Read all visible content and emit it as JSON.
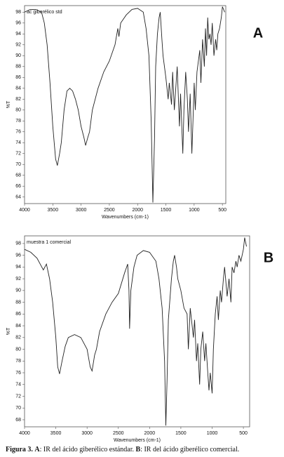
{
  "chart_data": [
    {
      "type": "line",
      "panel": "A",
      "annotation": "ac giberélico std",
      "xlabel": "Wavenumbers (cm-1)",
      "ylabel": "%T",
      "x": [
        4000,
        3900,
        3800,
        3700,
        3650,
        3600,
        3550,
        3500,
        3450,
        3420,
        3380,
        3350,
        3300,
        3250,
        3200,
        3150,
        3100,
        3050,
        3000,
        2950,
        2920,
        2880,
        2850,
        2800,
        2700,
        2600,
        2500,
        2400,
        2350,
        2330,
        2300,
        2200,
        2100,
        2000,
        1900,
        1850,
        1800,
        1760,
        1730,
        1700,
        1680,
        1650,
        1620,
        1600,
        1570,
        1550,
        1500,
        1460,
        1440,
        1400,
        1380,
        1350,
        1300,
        1260,
        1240,
        1200,
        1180,
        1150,
        1120,
        1100,
        1070,
        1040,
        1020,
        1000,
        980,
        950,
        900,
        880,
        850,
        820,
        800,
        780,
        760,
        740,
        720,
        700,
        680,
        650,
        620,
        600,
        580,
        550,
        520,
        500,
        460
      ],
      "series": [
        {
          "color": "#222222",
          "values": [
            98,
            98.5,
            98.5,
            98,
            96,
            92,
            85,
            77,
            71,
            69.8,
            72,
            74,
            80,
            83.5,
            84,
            83.5,
            82,
            80,
            77,
            75,
            73.5,
            75,
            76,
            80,
            84,
            87,
            89,
            92,
            95,
            93.5,
            96,
            97.5,
            98.5,
            98.7,
            98,
            95,
            90,
            78,
            63,
            75,
            88,
            94,
            97,
            98,
            93,
            90,
            86,
            82,
            85,
            81,
            87,
            80,
            88,
            77,
            83,
            72,
            80,
            87,
            82,
            76,
            83,
            72,
            78,
            85,
            80,
            87,
            91,
            85,
            93,
            88,
            95,
            90,
            97,
            93,
            94,
            92,
            96,
            90,
            93,
            91,
            94,
            95,
            97,
            99,
            98
          ]
        }
      ],
      "xlim": [
        4000,
        440
      ],
      "ylim": [
        62.8,
        99.2
      ],
      "xticks": [
        4000,
        3500,
        3000,
        2500,
        2000,
        1500,
        1000,
        500
      ],
      "yticks": [
        64,
        66,
        68,
        70,
        72,
        74,
        76,
        78,
        80,
        82,
        84,
        86,
        88,
        90,
        92,
        94,
        96,
        98
      ]
    },
    {
      "type": "line",
      "panel": "B",
      "annotation": "muestra 1 comercial",
      "xlabel": "Wavenumbers (cm-1)",
      "ylabel": "%T",
      "x": [
        4000,
        3900,
        3800,
        3700,
        3650,
        3600,
        3550,
        3500,
        3470,
        3440,
        3400,
        3350,
        3300,
        3200,
        3100,
        3000,
        2950,
        2920,
        2880,
        2850,
        2800,
        2700,
        2600,
        2500,
        2400,
        2350,
        2330,
        2320,
        2300,
        2250,
        2200,
        2100,
        2000,
        1900,
        1850,
        1800,
        1760,
        1740,
        1720,
        1700,
        1650,
        1620,
        1600,
        1570,
        1550,
        1500,
        1450,
        1400,
        1380,
        1350,
        1300,
        1280,
        1250,
        1230,
        1200,
        1180,
        1150,
        1120,
        1100,
        1070,
        1050,
        1030,
        1000,
        980,
        950,
        920,
        900,
        870,
        850,
        820,
        800,
        760,
        730,
        700,
        680,
        650,
        620,
        600,
        570,
        540,
        500,
        480,
        450
      ],
      "series": [
        {
          "color": "#222222",
          "values": [
            97,
            96.5,
            95.5,
            93.5,
            94.5,
            92,
            88,
            82,
            77,
            75.8,
            78,
            80.5,
            82,
            82.5,
            82,
            80,
            77,
            76.3,
            79,
            80,
            83,
            86,
            88,
            89.5,
            93,
            94.5,
            90,
            83.5,
            90,
            94,
            96,
            96.8,
            96.5,
            95,
            92,
            87,
            78,
            67,
            75,
            85,
            92,
            95,
            96,
            94,
            92,
            90,
            87,
            86,
            80,
            87,
            82,
            85,
            78,
            81,
            74,
            80,
            83,
            78,
            81,
            76,
            73,
            76,
            72.5,
            80,
            86,
            89,
            85,
            90,
            88,
            92,
            94,
            89,
            92,
            88,
            94,
            93,
            95,
            94,
            96,
            95,
            97,
            99,
            97.5
          ]
        }
      ],
      "xlim": [
        4000,
        400
      ],
      "ylim": [
        66.8,
        99.3
      ],
      "xticks": [
        4000,
        3500,
        3000,
        2500,
        2000,
        1500,
        1000,
        500
      ],
      "yticks": [
        68,
        70,
        72,
        74,
        76,
        78,
        80,
        82,
        84,
        86,
        88,
        90,
        92,
        94,
        96,
        98
      ]
    }
  ],
  "caption": {
    "figure": "Figura 3.",
    "a": "A",
    "a_text": ": IR del ácido giberélico estándar.",
    "b": "B",
    "b_text": ": IR del ácido giberélico comercial."
  }
}
